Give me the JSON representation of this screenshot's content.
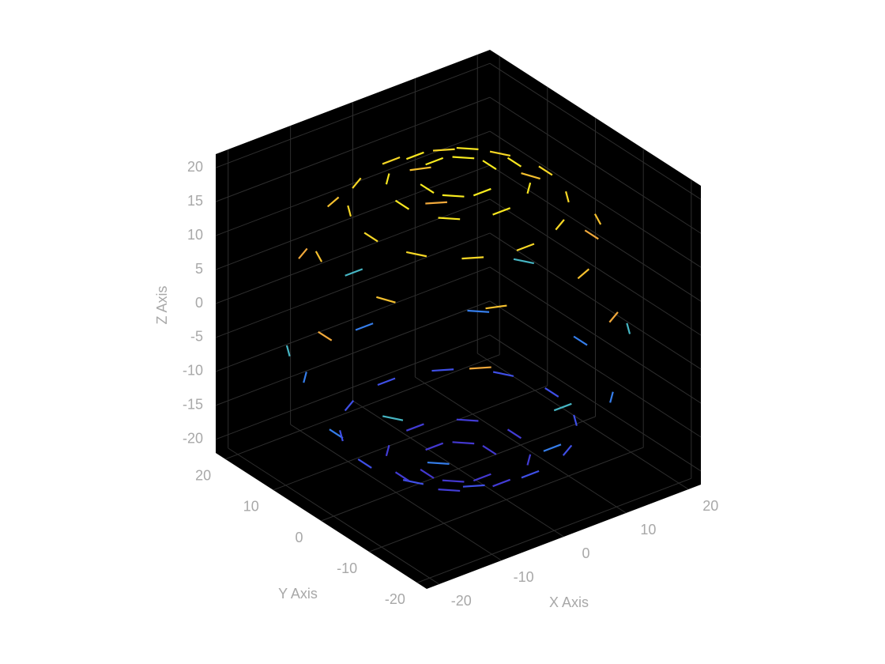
{
  "chart_data": {
    "type": "quiver3",
    "xlabel": "X Axis",
    "ylabel": "Y Axis",
    "zlabel": "Z Axis",
    "xlim": [
      -22,
      22
    ],
    "ylim": [
      -22,
      22
    ],
    "zlim": [
      -22,
      22
    ],
    "xticks": [
      -20,
      -10,
      0,
      10,
      20
    ],
    "yticks": [
      -20,
      -10,
      0,
      10,
      20
    ],
    "zticks": [
      -20,
      -15,
      -10,
      -5,
      0,
      5,
      10,
      15,
      20
    ],
    "grid": true,
    "background": "#000000",
    "colormap": [
      "#4433cc",
      "#3d5cf2",
      "#26b8dc",
      "#f0a63c",
      "#f6c42c",
      "#f8f01c"
    ],
    "x": [
      9,
      6.4,
      0,
      -6.4,
      -9,
      -6.4,
      0,
      6.4,
      5,
      0,
      -5,
      0,
      3.5,
      -3.5,
      14,
      12.1,
      7,
      0,
      -7,
      -12.1,
      -14,
      -12.1,
      -7,
      0,
      7,
      12.1,
      17,
      7,
      -7,
      -17,
      -17,
      -7,
      7,
      17,
      21.4,
      10.7,
      -10.7,
      -21.4,
      -10.7,
      10.7,
      18.9,
      0,
      -18.9,
      -18.9,
      0,
      18.9,
      19.6,
      13.9,
      0,
      -13.9,
      -19.6,
      -13.9,
      0,
      13.9,
      15,
      13,
      7.5,
      0,
      -7.5,
      -13,
      -15,
      -13,
      -7.5,
      0,
      7.5,
      13,
      9,
      6.4,
      0,
      -6.4,
      -9,
      -6.4,
      0,
      6.4,
      5,
      0,
      -5,
      0,
      3.5,
      -3.5
    ],
    "y": [
      0,
      6.4,
      9,
      6.4,
      0,
      -6.4,
      -9,
      -6.4,
      0,
      5,
      0,
      -5,
      3.5,
      -3.5,
      0,
      7,
      12.1,
      14,
      12.1,
      7,
      0,
      -7,
      -12.1,
      -14,
      -12.1,
      -7,
      7,
      17,
      17,
      7,
      -7,
      -17,
      -17,
      -7,
      0,
      18.5,
      18.5,
      0,
      -18.5,
      -18.5,
      10.9,
      21.8,
      10.9,
      -10.9,
      -21.8,
      -10.9,
      0,
      13.9,
      19.6,
      13.9,
      0,
      -13.9,
      -19.6,
      -13.9,
      0,
      7.5,
      13,
      15,
      13,
      7.5,
      0,
      -7.5,
      -13,
      -15,
      -13,
      -7.5,
      0,
      6.4,
      9,
      6.4,
      0,
      -6.4,
      -9,
      -6.4,
      0,
      5,
      0,
      -5,
      3.5,
      -3.5
    ],
    "z": [
      20,
      20,
      20,
      20,
      20,
      20,
      20,
      20,
      21,
      21,
      21,
      21,
      21,
      21,
      17,
      17,
      17,
      17,
      17,
      17,
      17,
      17,
      17,
      17,
      17,
      17,
      12,
      12,
      12,
      12,
      12,
      12,
      12,
      12,
      5,
      5,
      5,
      5,
      5,
      5,
      -3,
      -3,
      -3,
      -3,
      -3,
      -3,
      -10,
      -10,
      -10,
      -10,
      -10,
      -10,
      -10,
      -10,
      -16,
      -16,
      -16,
      -16,
      -16,
      -16,
      -16,
      -16,
      -16,
      -16,
      -16,
      -16,
      -20,
      -20,
      -20,
      -20,
      -20,
      -20,
      -20,
      -20,
      -21,
      -21,
      -21,
      -21,
      -21,
      -21
    ]
  }
}
